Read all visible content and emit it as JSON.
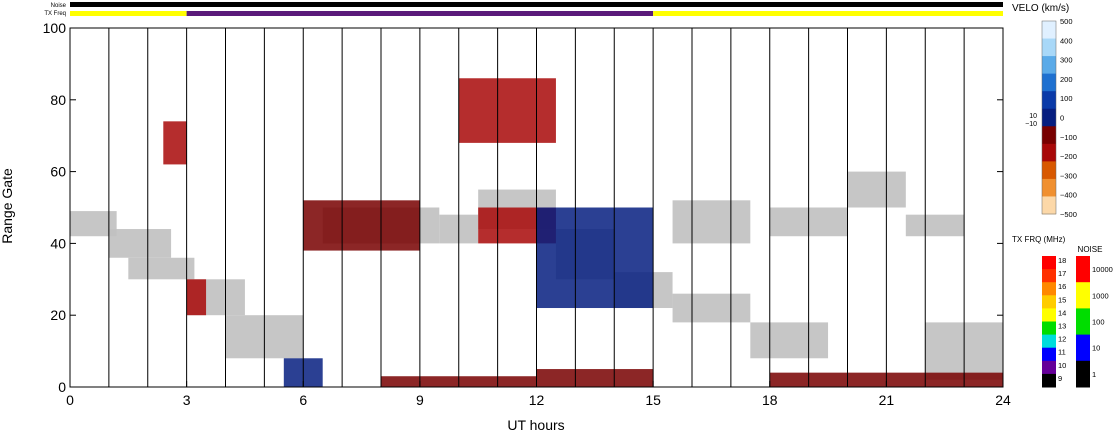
{
  "chart_data": {
    "type": "heatmap",
    "xlabel": "UT hours",
    "ylabel": "Range Gate",
    "xlim": [
      0,
      24
    ],
    "ylim": [
      0,
      100
    ],
    "x_ticks": [
      0,
      3,
      6,
      9,
      12,
      15,
      18,
      21,
      24
    ],
    "y_ticks": [
      0,
      20,
      40,
      60,
      80,
      100
    ],
    "status_bars": {
      "noise_label": "Noise",
      "txfreq_label": "TX Freq",
      "noise_segments": [
        {
          "start": 0,
          "end": 24,
          "color": "#000000"
        }
      ],
      "txfreq_segments": [
        {
          "start": 0,
          "end": 3,
          "color": "#ffff00"
        },
        {
          "start": 3,
          "end": 15,
          "color": "#5a1a7a"
        },
        {
          "start": 15,
          "end": 24,
          "color": "#ffff00"
        }
      ]
    },
    "velocity_scale": {
      "title": "VELO (km/s)",
      "ticks": [
        "500",
        "400",
        "300",
        "200",
        "100",
        "0",
        "−100",
        "−200",
        "−300",
        "−400",
        "−500"
      ],
      "ground_scatter_marks": [
        "10",
        "−10"
      ],
      "colors": [
        "#e0f0ff",
        "#a8d8f8",
        "#5aaae8",
        "#1e70d0",
        "#0a3aa8",
        "#061e80",
        "#780000",
        "#a80808",
        "#d85800",
        "#f09030",
        "#fcd8a8"
      ]
    },
    "txfreq_scale": {
      "title": "TX FRQ (MHz)",
      "ticks": [
        "18",
        "17",
        "16",
        "15",
        "14",
        "13",
        "12",
        "11",
        "10",
        "9"
      ],
      "colors": [
        "#ff0000",
        "#ff3000",
        "#ff8800",
        "#ffcc00",
        "#ffff00",
        "#00dd00",
        "#00dddd",
        "#0000ff",
        "#660099",
        "#000000"
      ]
    },
    "noise_scale": {
      "title": "NOISE",
      "ticks": [
        "10000",
        "1000",
        "100",
        "10",
        "1"
      ],
      "colors": [
        "#ff0000",
        "#ffff00",
        "#00dd00",
        "#0000ff",
        "#000000"
      ]
    },
    "ground_scatter_color": "#c0c0c0",
    "scan_boundaries_ut": [
      1,
      2,
      3,
      4,
      5,
      6,
      7,
      8,
      9,
      10,
      11,
      12,
      13,
      14,
      15,
      16,
      17,
      18,
      19,
      20,
      21,
      22,
      23
    ],
    "ground_scatter_bands": [
      {
        "x0": 0.0,
        "x1": 1.2,
        "y0": 42,
        "y1": 49
      },
      {
        "x0": 1.0,
        "x1": 2.6,
        "y0": 36,
        "y1": 44
      },
      {
        "x0": 1.5,
        "x1": 3.2,
        "y0": 30,
        "y1": 36
      },
      {
        "x0": 3.0,
        "x1": 4.5,
        "y0": 20,
        "y1": 30
      },
      {
        "x0": 4.0,
        "x1": 6.0,
        "y0": 8,
        "y1": 20
      },
      {
        "x0": 6.5,
        "x1": 9.5,
        "y0": 40,
        "y1": 50
      },
      {
        "x0": 9.5,
        "x1": 10.5,
        "y0": 40,
        "y1": 48
      },
      {
        "x0": 10.5,
        "x1": 12.5,
        "y0": 44,
        "y1": 55
      },
      {
        "x0": 12.5,
        "x1": 14.0,
        "y0": 30,
        "y1": 44
      },
      {
        "x0": 14.0,
        "x1": 15.5,
        "y0": 22,
        "y1": 32
      },
      {
        "x0": 15.5,
        "x1": 17.5,
        "y0": 18,
        "y1": 26
      },
      {
        "x0": 17.5,
        "x1": 19.5,
        "y0": 8,
        "y1": 18
      },
      {
        "x0": 15.5,
        "x1": 17.5,
        "y0": 40,
        "y1": 52
      },
      {
        "x0": 18.0,
        "x1": 20.0,
        "y0": 42,
        "y1": 50
      },
      {
        "x0": 20.0,
        "x1": 21.5,
        "y0": 50,
        "y1": 60
      },
      {
        "x0": 21.5,
        "x1": 23.0,
        "y0": 42,
        "y1": 48
      },
      {
        "x0": 22.0,
        "x1": 24.0,
        "y0": 2,
        "y1": 18
      }
    ],
    "velocity_bands": [
      {
        "x0": 3.0,
        "x1": 3.5,
        "y0": 20,
        "y1": 30,
        "color": "#a80808"
      },
      {
        "x0": 2.4,
        "x1": 3.0,
        "y0": 62,
        "y1": 74,
        "color": "#a80808"
      },
      {
        "x0": 10.5,
        "x1": 12.5,
        "y0": 40,
        "y1": 50,
        "color": "#a80808"
      },
      {
        "x0": 10.0,
        "x1": 12.5,
        "y0": 68,
        "y1": 86,
        "color": "#a80808"
      },
      {
        "x0": 12.0,
        "x1": 15.0,
        "y0": 22,
        "y1": 50,
        "color": "#061e80"
      },
      {
        "x0": 8.0,
        "x1": 12.0,
        "y0": 0,
        "y1": 3,
        "color": "#780000"
      },
      {
        "x0": 12.0,
        "x1": 15.0,
        "y0": 0,
        "y1": 5,
        "color": "#780000"
      },
      {
        "x0": 18.0,
        "x1": 24.0,
        "y0": 0,
        "y1": 4,
        "color": "#780000"
      },
      {
        "x0": 5.5,
        "x1": 6.5,
        "y0": 0,
        "y1": 8,
        "color": "#061e80"
      },
      {
        "x0": 6.0,
        "x1": 9.0,
        "y0": 38,
        "y1": 52,
        "color": "#780000"
      }
    ]
  }
}
